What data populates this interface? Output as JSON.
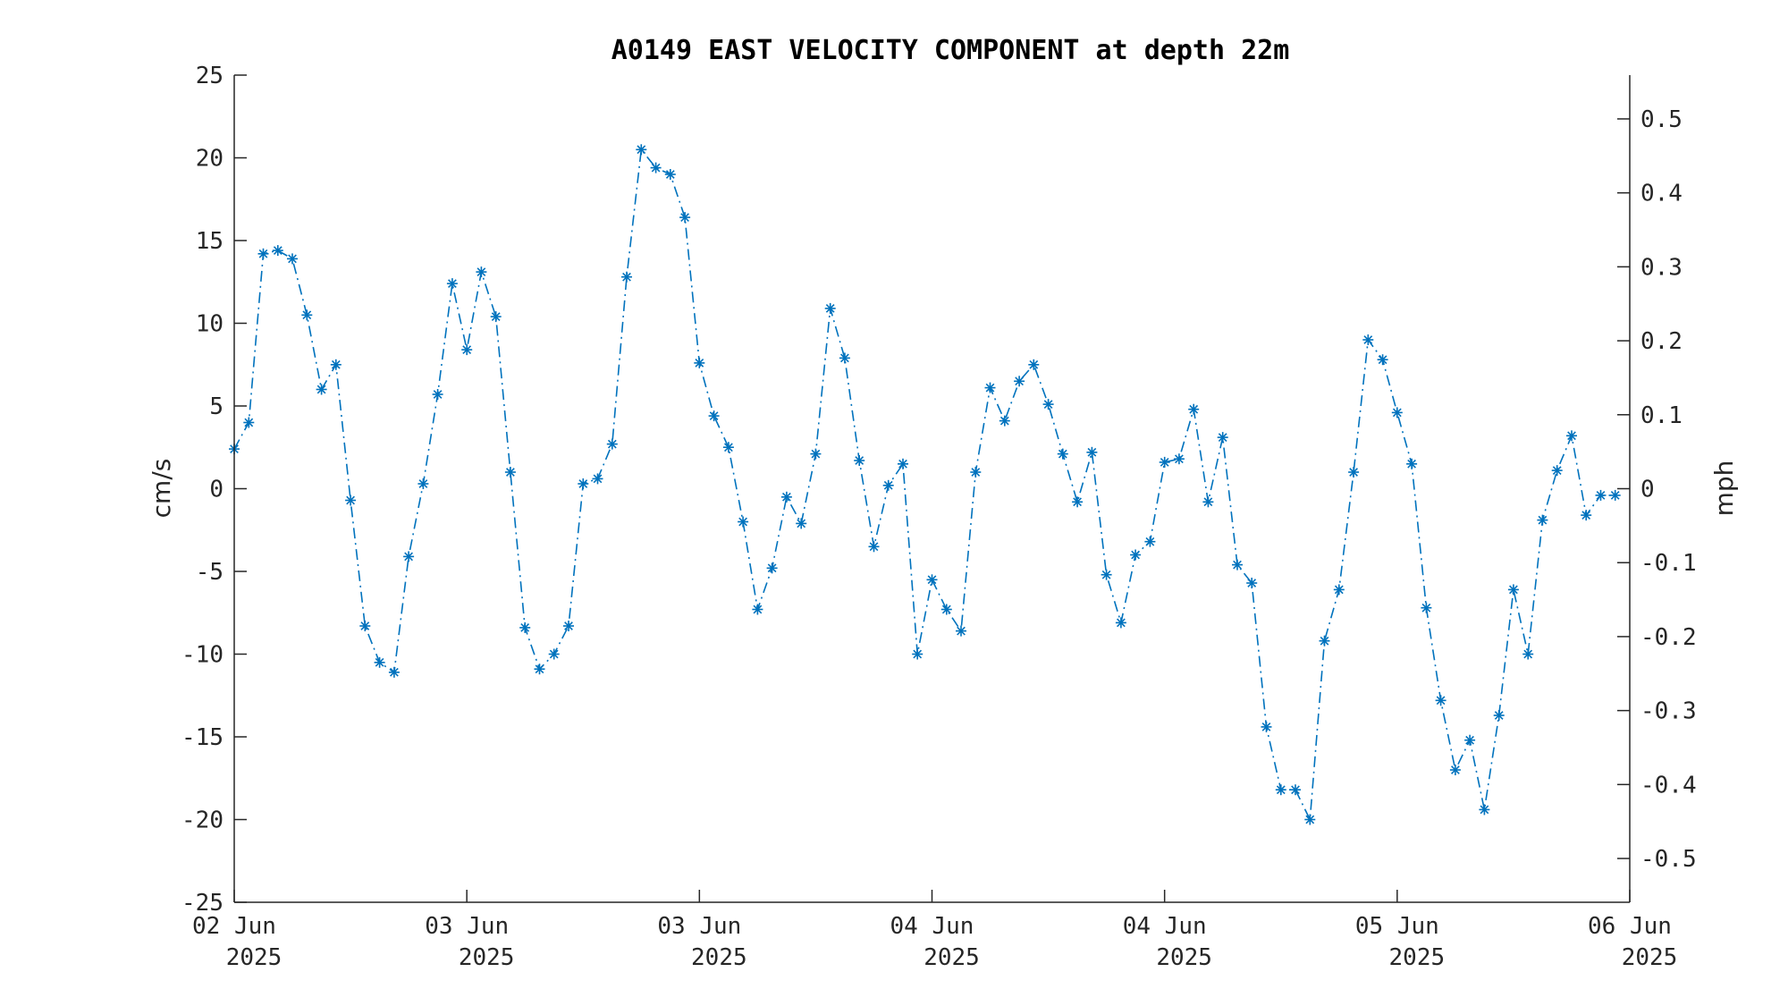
{
  "chart_data": {
    "type": "line",
    "title": "A0149 EAST VELOCITY COMPONENT at depth 22m",
    "ylabel_left": "cm/s",
    "ylabel_right": "mph",
    "ylim_left": [
      -25,
      25
    ],
    "yticks_left": [
      "25",
      "20",
      "15",
      "10",
      "5",
      "0",
      "-5",
      "-10",
      "-15",
      "-20",
      "-25"
    ],
    "ylim_right": [
      -0.5592,
      0.5592
    ],
    "yticks_right": [
      "0.5",
      "0.4",
      "0.3",
      "0.2",
      "0.1",
      "0",
      "-0.1",
      "-0.2",
      "-0.3",
      "-0.4",
      "-0.5"
    ],
    "xlim": [
      "2025-06-02T00:00",
      "2025-06-06T00:00"
    ],
    "xticks": [
      {
        "line1": "02 Jun",
        "line2": "2025"
      },
      {
        "line1": "03 Jun",
        "line2": "2025"
      },
      {
        "line1": "03 Jun",
        "line2": "2025"
      },
      {
        "line1": "04 Jun",
        "line2": "2025"
      },
      {
        "line1": "04 Jun",
        "line2": "2025"
      },
      {
        "line1": "05 Jun",
        "line2": "2025"
      },
      {
        "line1": "06 Jun",
        "line2": "2025"
      }
    ],
    "grid": false,
    "series_color": "#0072BD",
    "marker": "asterisk",
    "line_style": "dash-dot",
    "series": [
      {
        "name": "",
        "x": [
          "2025-06-02T00:00",
          "2025-06-02T01:00",
          "2025-06-02T02:00",
          "2025-06-02T03:00",
          "2025-06-02T04:00",
          "2025-06-02T05:00",
          "2025-06-02T06:00",
          "2025-06-02T07:00",
          "2025-06-02T08:00",
          "2025-06-02T09:00",
          "2025-06-02T10:00",
          "2025-06-02T11:00",
          "2025-06-02T12:00",
          "2025-06-02T13:00",
          "2025-06-02T14:00",
          "2025-06-02T15:00",
          "2025-06-02T16:00",
          "2025-06-02T17:00",
          "2025-06-02T18:00",
          "2025-06-02T19:00",
          "2025-06-02T20:00",
          "2025-06-02T21:00",
          "2025-06-02T22:00",
          "2025-06-02T23:00",
          "2025-06-03T00:00",
          "2025-06-03T01:00",
          "2025-06-03T02:00",
          "2025-06-03T03:00",
          "2025-06-03T04:00",
          "2025-06-03T05:00",
          "2025-06-03T06:00",
          "2025-06-03T07:00",
          "2025-06-03T08:00",
          "2025-06-03T09:00",
          "2025-06-03T10:00",
          "2025-06-03T11:00",
          "2025-06-03T12:00",
          "2025-06-03T13:00",
          "2025-06-03T14:00",
          "2025-06-03T15:00",
          "2025-06-03T16:00",
          "2025-06-03T17:00",
          "2025-06-03T18:00",
          "2025-06-03T19:00",
          "2025-06-03T20:00",
          "2025-06-03T21:00",
          "2025-06-03T22:00",
          "2025-06-03T23:00",
          "2025-06-04T00:00",
          "2025-06-04T01:00",
          "2025-06-04T02:00",
          "2025-06-04T03:00",
          "2025-06-04T04:00",
          "2025-06-04T05:00",
          "2025-06-04T06:00",
          "2025-06-04T07:00",
          "2025-06-04T08:00",
          "2025-06-04T09:00",
          "2025-06-04T10:00",
          "2025-06-04T11:00",
          "2025-06-04T12:00",
          "2025-06-04T13:00",
          "2025-06-04T14:00",
          "2025-06-04T15:00",
          "2025-06-04T16:00",
          "2025-06-04T17:00",
          "2025-06-04T18:00",
          "2025-06-04T19:00",
          "2025-06-04T20:00",
          "2025-06-04T21:00",
          "2025-06-04T22:00",
          "2025-06-04T23:00",
          "2025-06-05T00:00",
          "2025-06-05T01:00",
          "2025-06-05T02:00",
          "2025-06-05T03:00",
          "2025-06-05T04:00",
          "2025-06-05T05:00",
          "2025-06-05T06:00",
          "2025-06-05T07:00",
          "2025-06-05T08:00",
          "2025-06-05T09:00",
          "2025-06-05T10:00",
          "2025-06-05T11:00",
          "2025-06-05T12:00",
          "2025-06-05T13:00",
          "2025-06-05T14:00",
          "2025-06-05T15:00",
          "2025-06-05T16:00",
          "2025-06-05T17:00",
          "2025-06-05T18:00",
          "2025-06-05T19:00",
          "2025-06-05T20:00",
          "2025-06-05T21:00",
          "2025-06-05T22:00",
          "2025-06-05T23:00"
        ],
        "y": [
          2.4,
          4.0,
          14.2,
          14.4,
          13.9,
          10.5,
          6.0,
          7.5,
          -0.7,
          -8.3,
          -10.5,
          -11.1,
          -4.1,
          0.3,
          5.7,
          12.4,
          8.4,
          13.1,
          10.4,
          1.0,
          -8.4,
          -10.9,
          -10.0,
          -8.3,
          0.3,
          0.6,
          2.7,
          12.8,
          20.5,
          19.4,
          19.0,
          16.4,
          7.6,
          4.4,
          2.5,
          -2.0,
          -7.3,
          -4.8,
          -0.5,
          -2.1,
          2.1,
          10.9,
          7.9,
          1.7,
          -3.5,
          0.2,
          1.5,
          -10.0,
          -5.5,
          -7.3,
          -8.6,
          1.0,
          6.1,
          4.1,
          6.5,
          7.5,
          5.1,
          2.1,
          -0.8,
          2.2,
          -5.2,
          -8.1,
          -4.0,
          -3.2,
          1.6,
          1.8,
          4.8,
          -0.8,
          3.1,
          -4.6,
          -5.7,
          -14.4,
          -18.2,
          -18.2,
          -20.0,
          -9.2,
          -6.1,
          1.0,
          9.0,
          7.8,
          4.6,
          1.5,
          -7.2,
          -12.8,
          -17.0,
          -15.2,
          -19.4,
          -13.7,
          -6.1,
          -10.0,
          -1.9,
          1.1,
          3.2,
          -1.6,
          -0.4,
          -0.4
        ]
      }
    ]
  }
}
